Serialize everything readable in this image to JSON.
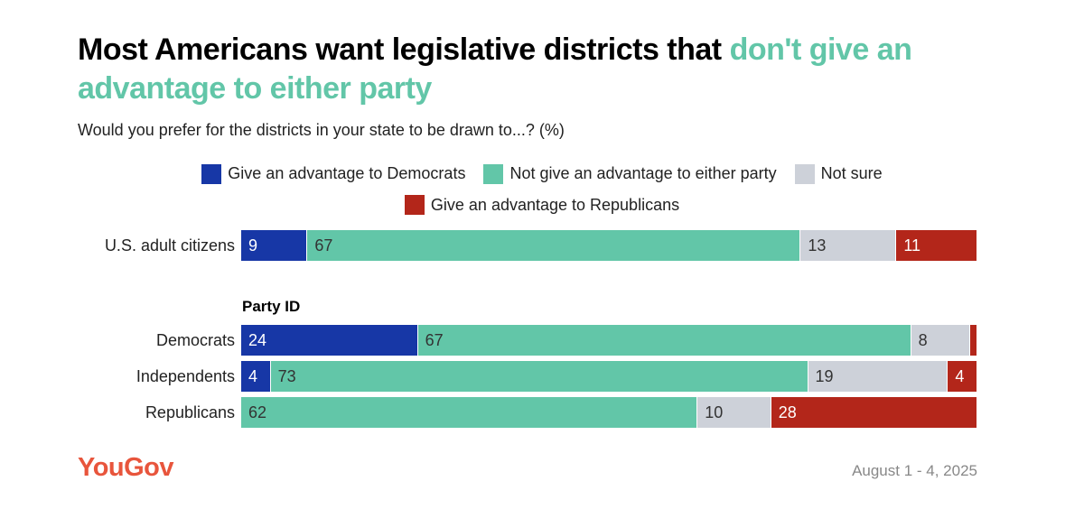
{
  "chart_data": {
    "type": "bar",
    "orientation": "horizontal-stacked",
    "title_part1": "Most Americans want legislative districts that ",
    "title_highlight": "don't give an advantage to either party",
    "subtitle": "Would you prefer for the districts in your state to be drawn to...? (%)",
    "group_label": "Party ID",
    "series": [
      {
        "name": "Give an advantage to Democrats",
        "color": "#1737a6",
        "text_color": "#ffffff"
      },
      {
        "name": "Not give an advantage to either party",
        "color": "#62c6a8",
        "text_color": "#333333"
      },
      {
        "name": "Not sure",
        "color": "#cdd1d9",
        "text_color": "#333333"
      },
      {
        "name": "Give an advantage to Republicans",
        "color": "#b3261a",
        "text_color": "#ffffff"
      }
    ],
    "categories": [
      "U.S. adult citizens",
      "Democrats",
      "Independents",
      "Republicans"
    ],
    "values": [
      [
        9,
        67,
        13,
        11
      ],
      [
        24,
        67,
        8,
        1
      ],
      [
        4,
        73,
        19,
        4
      ],
      [
        0,
        62,
        10,
        28
      ]
    ],
    "labels": [
      [
        "9",
        "67",
        "13",
        "11"
      ],
      [
        "24",
        "67",
        "8",
        ""
      ],
      [
        "4",
        "73",
        "19",
        "4"
      ],
      [
        "",
        "62",
        "10",
        "28"
      ]
    ]
  },
  "footer": {
    "logo": "YouGov",
    "date": "August 1 - 4, 2025"
  }
}
